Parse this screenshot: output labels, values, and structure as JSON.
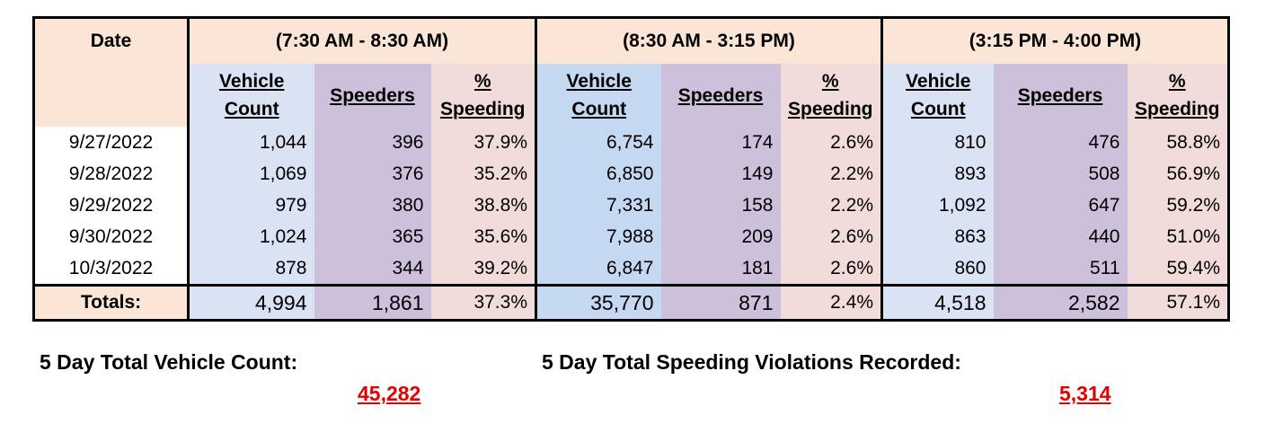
{
  "header": {
    "date_label": "Date",
    "period1": "(7:30 AM - 8:30 AM)",
    "period2": "(8:30 AM - 3:15 PM)",
    "period3": "(3:15 PM - 4:00 PM)",
    "col_vehicle_line1": "Vehicle",
    "col_vehicle_line2": "Count",
    "col_speeders": "Speeders",
    "col_pct_line1": "%",
    "col_pct_line2": "Speeding"
  },
  "rows": [
    {
      "date": "9/27/2022",
      "p1": [
        "1,044",
        "396",
        "37.9%"
      ],
      "p2": [
        "6,754",
        "174",
        "2.6%"
      ],
      "p3": [
        "810",
        "476",
        "58.8%"
      ]
    },
    {
      "date": "9/28/2022",
      "p1": [
        "1,069",
        "376",
        "35.2%"
      ],
      "p2": [
        "6,850",
        "149",
        "2.2%"
      ],
      "p3": [
        "893",
        "508",
        "56.9%"
      ]
    },
    {
      "date": "9/29/2022",
      "p1": [
        "979",
        "380",
        "38.8%"
      ],
      "p2": [
        "7,331",
        "158",
        "2.2%"
      ],
      "p3": [
        "1,092",
        "647",
        "59.2%"
      ]
    },
    {
      "date": "9/30/2022",
      "p1": [
        "1,024",
        "365",
        "35.6%"
      ],
      "p2": [
        "7,988",
        "209",
        "2.6%"
      ],
      "p3": [
        "863",
        "440",
        "51.0%"
      ]
    },
    {
      "date": "10/3/2022",
      "p1": [
        "878",
        "344",
        "39.2%"
      ],
      "p2": [
        "6,847",
        "181",
        "2.6%"
      ],
      "p3": [
        "860",
        "511",
        "59.4%"
      ]
    }
  ],
  "totals": {
    "label": "Totals:",
    "p1": [
      "4,994",
      "1,861",
      "37.3%"
    ],
    "p2": [
      "35,770",
      "871",
      "2.4%"
    ],
    "p3": [
      "4,518",
      "2,582",
      "57.1%"
    ]
  },
  "summary": {
    "vehicle_label": "5 Day Total Vehicle Count:",
    "vehicle_value": "45,282",
    "violations_label": "5 Day Total Speeding Violations Recorded:",
    "violations_value": "5,314"
  },
  "colors": {
    "peach": "#fbe5d6",
    "blue": "#dae3f3",
    "purple": "#ccc0da",
    "pink": "#f2dcdb",
    "total_red": "#e00000"
  }
}
